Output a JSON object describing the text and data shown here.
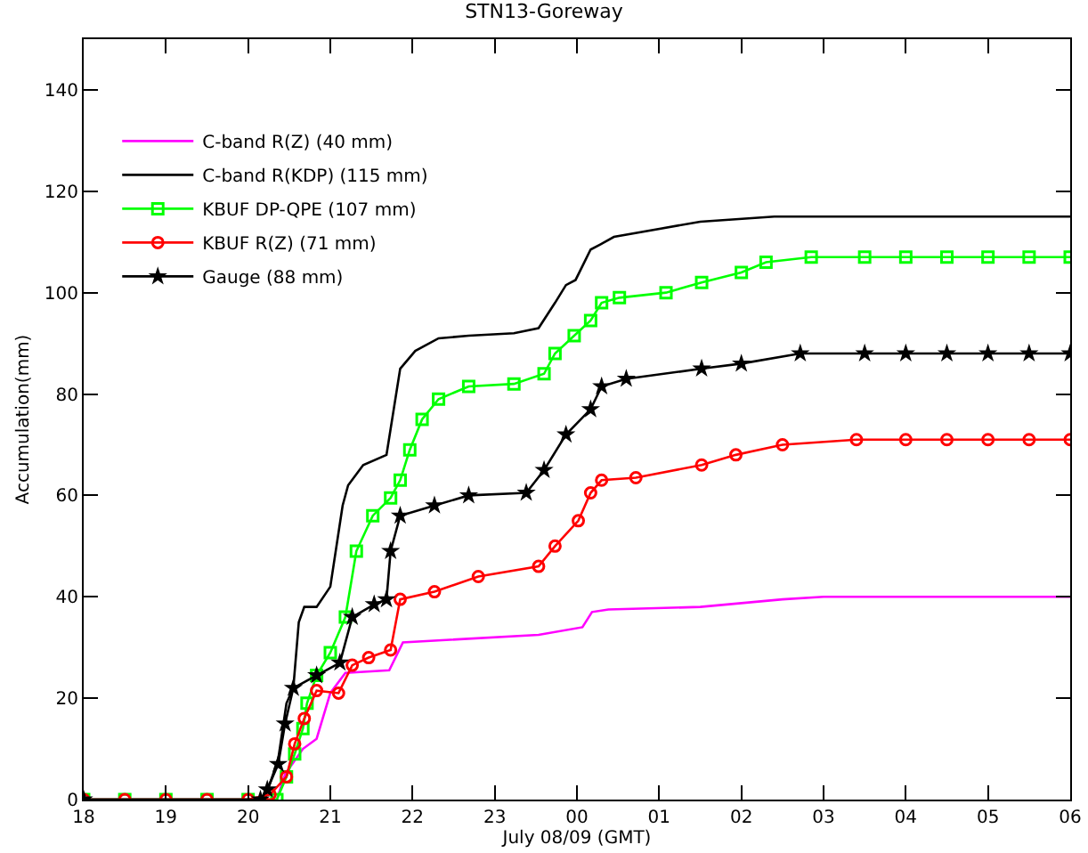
{
  "chart_data": {
    "type": "line",
    "title": "STN13-Goreway",
    "xlabel": "July 08/09 (GMT)",
    "ylabel": "Accumulation(mm)",
    "xlim": [
      "--07-08T18:00",
      "--07-09T06:00"
    ],
    "ylim": [
      0,
      150
    ],
    "xticks": [
      {
        "value": "--07-08T18:00",
        "label": "18"
      },
      {
        "value": "--07-08T19:00",
        "label": "19"
      },
      {
        "value": "--07-08T20:00",
        "label": "20"
      },
      {
        "value": "--07-08T21:00",
        "label": "21"
      },
      {
        "value": "--07-08T22:00",
        "label": "22"
      },
      {
        "value": "--07-08T23:00",
        "label": "23"
      },
      {
        "value": "--07-09T00:00",
        "label": "00"
      },
      {
        "value": "--07-09T01:00",
        "label": "01"
      },
      {
        "value": "--07-09T02:00",
        "label": "02"
      },
      {
        "value": "--07-09T03:00",
        "label": "03"
      },
      {
        "value": "--07-09T04:00",
        "label": "04"
      },
      {
        "value": "--07-09T05:00",
        "label": "05"
      },
      {
        "value": "--07-09T06:00",
        "label": "06"
      }
    ],
    "yticks": [
      0,
      20,
      40,
      60,
      80,
      100,
      120,
      140
    ],
    "grid": false,
    "legend": "top left",
    "line_style": "solid",
    "series": [
      {
        "name": "C-band R(Z) (40 mm)",
        "color": "#ff00ff",
        "marker": "none",
        "x": [
          "--07-08T18:00",
          "--07-08T20:21",
          "--07-08T20:27",
          "--07-08T20:40",
          "--07-08T20:50",
          "--07-08T21:00",
          "--07-08T21:11",
          "--07-08T21:43",
          "--07-08T21:53",
          "--07-08T23:32",
          "--07-09T00:04",
          "--07-09T00:11",
          "--07-09T00:23",
          "--07-09T01:30",
          "--07-09T02:30",
          "--07-09T03:00",
          "--07-09T06:00"
        ],
        "values": [
          0,
          0,
          5,
          10,
          12,
          21,
          25,
          25.5,
          31,
          32.5,
          34,
          37,
          37.5,
          38,
          39.5,
          40,
          40
        ]
      },
      {
        "name": "C-band R(KDP) (115 mm)",
        "color": "#000000",
        "marker": "none",
        "x": [
          "--07-08T18:00",
          "--07-08T20:12",
          "--07-08T20:22",
          "--07-08T20:28",
          "--07-08T20:33",
          "--07-08T20:37",
          "--07-08T20:41",
          "--07-08T20:50",
          "--07-08T21:00",
          "--07-08T21:09",
          "--07-08T21:13",
          "--07-08T21:24",
          "--07-08T21:41",
          "--07-08T21:51",
          "--07-08T22:02",
          "--07-08T22:19",
          "--07-08T22:41",
          "--07-08T23:14",
          "--07-08T23:32",
          "--07-08T23:44",
          "--07-08T23:52",
          "--07-08T23:59",
          "--07-09T00:10",
          "--07-09T00:17",
          "--07-09T00:27",
          "--07-09T01:30",
          "--07-09T02:24",
          "--07-09T06:00"
        ],
        "values": [
          0,
          0,
          8,
          19,
          22,
          35,
          38,
          38,
          42,
          58,
          62,
          66,
          68,
          85,
          88.5,
          91,
          91.5,
          92,
          93,
          98,
          101.5,
          102.5,
          108.5,
          109.5,
          111,
          114,
          115,
          115
        ]
      },
      {
        "name": "KBUF DP-QPE (107 mm)",
        "color": "#00ff00",
        "marker": "square",
        "x": [
          "--07-08T18:00",
          "--07-08T18:30",
          "--07-08T19:00",
          "--07-08T19:30",
          "--07-08T20:00",
          "--07-08T20:21",
          "--07-08T20:28",
          "--07-08T20:34",
          "--07-08T20:40",
          "--07-08T20:43",
          "--07-08T20:50",
          "--07-08T21:00",
          "--07-08T21:11",
          "--07-08T21:19",
          "--07-08T21:31",
          "--07-08T21:44",
          "--07-08T21:51",
          "--07-08T21:58",
          "--07-08T22:07",
          "--07-08T22:19",
          "--07-08T22:41",
          "--07-08T23:14",
          "--07-08T23:36",
          "--07-08T23:44",
          "--07-08T23:58",
          "--07-09T00:10",
          "--07-09T00:18",
          "--07-09T00:31",
          "--07-09T01:05",
          "--07-09T01:31",
          "--07-09T02:00",
          "--07-09T02:18",
          "--07-09T02:51",
          "--07-09T03:30",
          "--07-09T04:00",
          "--07-09T04:30",
          "--07-09T05:00",
          "--07-09T05:30",
          "--07-09T06:00"
        ],
        "values": [
          0,
          0,
          0,
          0,
          0,
          0,
          4.5,
          9,
          14,
          19,
          24.5,
          29,
          36,
          49,
          56,
          59.5,
          63,
          69,
          75,
          79,
          81.5,
          82,
          84,
          88,
          91.5,
          94.5,
          98,
          99,
          100,
          102,
          104,
          106,
          107,
          107,
          107,
          107,
          107,
          107,
          107
        ]
      },
      {
        "name": "KBUF R(Z) (71 mm)",
        "color": "#ff0000",
        "marker": "circle",
        "x": [
          "--07-08T18:00",
          "--07-08T18:30",
          "--07-08T19:00",
          "--07-08T19:30",
          "--07-08T20:00",
          "--07-08T20:16",
          "--07-08T20:28",
          "--07-08T20:34",
          "--07-08T20:41",
          "--07-08T20:50",
          "--07-08T21:06",
          "--07-08T21:16",
          "--07-08T21:28",
          "--07-08T21:44",
          "--07-08T21:51",
          "--07-08T22:16",
          "--07-08T22:48",
          "--07-08T23:32",
          "--07-08T23:44",
          "--07-09T00:01",
          "--07-09T00:10",
          "--07-09T00:18",
          "--07-09T00:43",
          "--07-09T01:31",
          "--07-09T01:56",
          "--07-09T02:30",
          "--07-09T03:24",
          "--07-09T04:00",
          "--07-09T04:30",
          "--07-09T05:00",
          "--07-09T05:30",
          "--07-09T06:00"
        ],
        "values": [
          0,
          0,
          0,
          0,
          0,
          1,
          4.5,
          11,
          16,
          21.5,
          21,
          26.5,
          28,
          29.5,
          39.5,
          41,
          44,
          46,
          50,
          55,
          60.5,
          63,
          63.5,
          66,
          68,
          70,
          71,
          71,
          71,
          71,
          71,
          71
        ]
      },
      {
        "name": "Gauge (88 mm)",
        "color": "#000000",
        "marker": "star",
        "x": [
          "--07-08T18:00",
          "--07-08T20:09",
          "--07-08T20:14",
          "--07-08T20:22",
          "--07-08T20:27",
          "--07-08T20:33",
          "--07-08T20:50",
          "--07-08T21:07",
          "--07-08T21:16",
          "--07-08T21:32",
          "--07-08T21:41",
          "--07-08T21:44",
          "--07-08T21:51",
          "--07-08T22:16",
          "--07-08T22:41",
          "--07-08T23:23",
          "--07-08T23:36",
          "--07-08T23:52",
          "--07-09T00:10",
          "--07-09T00:18",
          "--07-09T00:36",
          "--07-09T01:31",
          "--07-09T02:00",
          "--07-09T02:43",
          "--07-09T03:30",
          "--07-09T04:00",
          "--07-09T04:30",
          "--07-09T05:00",
          "--07-09T05:30",
          "--07-09T06:00"
        ],
        "values": [
          0,
          0,
          2,
          7,
          15,
          22,
          24.5,
          27,
          36,
          38.5,
          39.5,
          49,
          56,
          58,
          60,
          60.5,
          65,
          72,
          77,
          81.5,
          83,
          85,
          86,
          88,
          88,
          88,
          88,
          88,
          88,
          88
        ]
      }
    ]
  }
}
